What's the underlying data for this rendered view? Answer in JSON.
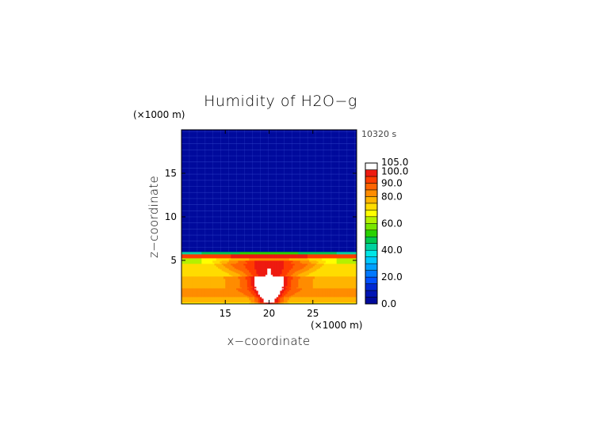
{
  "chart_data": {
    "type": "heatmap",
    "title": "Humidity of H2O−g",
    "time_label": "10320 s",
    "xlabel": "x−coordinate",
    "ylabel": "z−coordinate",
    "x_unit": "(×1000 m)",
    "y_unit": "(×1000 m)",
    "xlim": [
      10,
      30
    ],
    "ylim": [
      0,
      20
    ],
    "x_ticks": [
      15,
      20,
      25
    ],
    "y_ticks": [
      5,
      10,
      15
    ],
    "colorbar": {
      "levels": [
        0,
        5,
        10,
        15,
        20,
        25,
        30,
        35,
        40,
        45,
        50,
        55,
        60,
        65,
        70,
        75,
        80,
        85,
        90,
        95,
        100,
        105
      ],
      "tick_labels": [
        "0.0",
        "20.0",
        "40.0",
        "60.0",
        "80.0",
        "90.0",
        "100.0",
        "105.0"
      ],
      "tick_values": [
        0,
        20,
        40,
        60,
        80,
        90,
        100,
        105
      ],
      "colors": [
        "#000a9c",
        "#0014b4",
        "#0028d2",
        "#0050ff",
        "#0078ff",
        "#00a0ff",
        "#00c8ff",
        "#00e6e6",
        "#00d2a0",
        "#00c850",
        "#28d200",
        "#78e600",
        "#b4f000",
        "#ffff00",
        "#ffdc00",
        "#ffb400",
        "#ff8c00",
        "#ff6400",
        "#ff3c00",
        "#ee1a10",
        "#ffffff"
      ]
    }
  }
}
